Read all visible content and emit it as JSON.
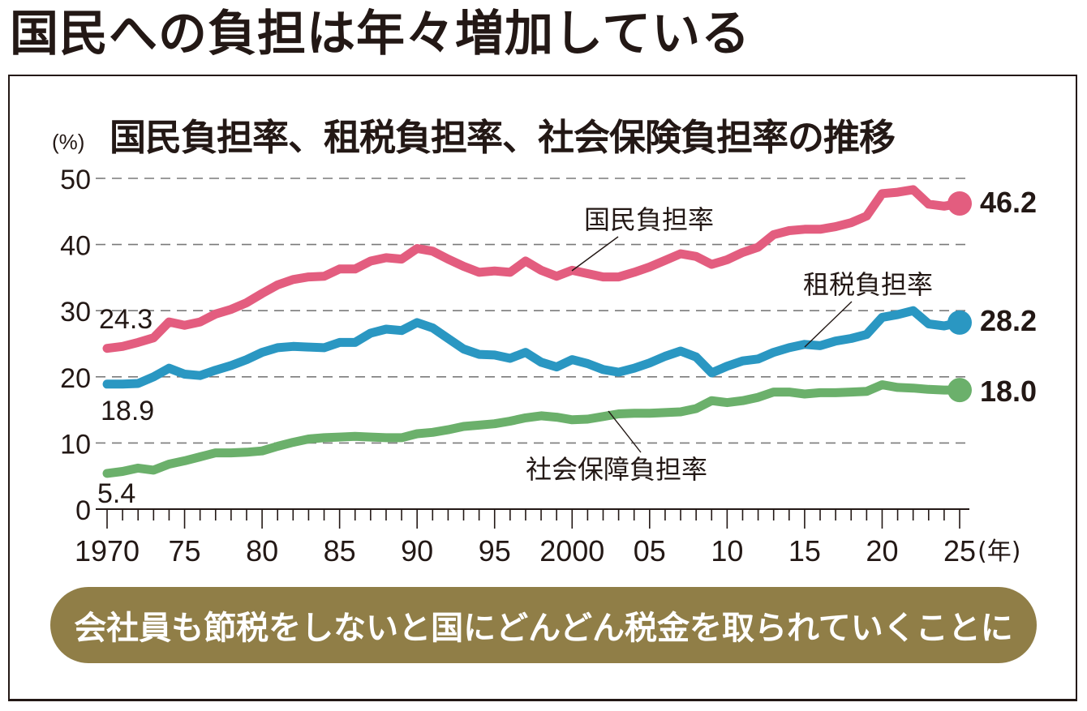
{
  "headline": "国民への負担は年々増加している",
  "banner_text": "会社員も節税をしないと国にどんどん税金を取られていくことに",
  "colors": {
    "national": "#e35d7f",
    "tax": "#2a97c2",
    "social": "#6bb06b",
    "banner": "#907e47",
    "text": "#231815",
    "grid": "#7a7a7a"
  },
  "chart_data": {
    "type": "line",
    "title": "国民負担率、租税負担率、社会保険負担率の推移",
    "ylabel": "(%)",
    "xlabel": "(年)",
    "ylim": [
      0,
      50
    ],
    "xlim": [
      1970,
      2025
    ],
    "yticks": [
      0,
      10,
      20,
      30,
      40,
      50
    ],
    "ytick_labels": [
      "0",
      "10",
      "20",
      "30",
      "40",
      "50"
    ],
    "xticks": [
      1970,
      1975,
      1980,
      1985,
      1990,
      1995,
      2000,
      2005,
      2010,
      2015,
      2020,
      2025
    ],
    "xtick_labels": [
      "1970",
      "75",
      "80",
      "85",
      "90",
      "95",
      "2000",
      "05",
      "10",
      "15",
      "20",
      "25"
    ],
    "x_unit_label": "(年)",
    "grid": "horizontal-dashed",
    "x": [
      1970,
      1971,
      1972,
      1973,
      1974,
      1975,
      1976,
      1977,
      1978,
      1979,
      1980,
      1981,
      1982,
      1983,
      1984,
      1985,
      1986,
      1987,
      1988,
      1989,
      1990,
      1991,
      1992,
      1993,
      1994,
      1995,
      1996,
      1997,
      1998,
      1999,
      2000,
      2001,
      2002,
      2003,
      2004,
      2005,
      2006,
      2007,
      2008,
      2009,
      2010,
      2011,
      2012,
      2013,
      2014,
      2015,
      2016,
      2017,
      2018,
      2019,
      2020,
      2021,
      2022,
      2023,
      2024,
      2025
    ],
    "series": [
      {
        "name": "国民負担率",
        "key": "national",
        "values": [
          24.3,
          24.6,
          25.2,
          25.9,
          28.3,
          27.8,
          28.3,
          29.5,
          30.2,
          31.2,
          32.6,
          33.9,
          34.7,
          35.1,
          35.2,
          36.3,
          36.3,
          37.5,
          38.0,
          37.8,
          39.4,
          39.0,
          37.8,
          36.7,
          35.8,
          36.0,
          35.8,
          37.5,
          36.1,
          35.2,
          36.1,
          35.6,
          35.1,
          35.1,
          35.8,
          36.6,
          37.6,
          38.6,
          38.2,
          37.0,
          37.7,
          38.8,
          39.6,
          41.5,
          42.1,
          42.3,
          42.3,
          42.7,
          43.3,
          44.3,
          47.7,
          47.9,
          48.3,
          46.1,
          45.8,
          46.2
        ],
        "start_label": "24.3",
        "end_label": "46.2",
        "annotation": "国民負担率"
      },
      {
        "name": "租税負担率",
        "key": "tax",
        "values": [
          18.9,
          18.9,
          19.0,
          20.0,
          21.3,
          20.4,
          20.2,
          21.0,
          21.7,
          22.6,
          23.7,
          24.4,
          24.6,
          24.5,
          24.4,
          25.2,
          25.2,
          26.6,
          27.2,
          27.0,
          28.2,
          27.4,
          25.8,
          24.2,
          23.4,
          23.3,
          22.8,
          23.7,
          22.2,
          21.5,
          22.6,
          22.0,
          21.1,
          20.7,
          21.3,
          22.1,
          23.1,
          23.9,
          23.0,
          20.6,
          21.6,
          22.4,
          22.7,
          23.7,
          24.4,
          24.9,
          24.7,
          25.4,
          25.8,
          26.4,
          29.0,
          29.4,
          30.0,
          28.0,
          27.7,
          28.2
        ],
        "start_label": "18.9",
        "end_label": "28.2",
        "annotation": "租税負担率"
      },
      {
        "name": "社会保障負担率",
        "key": "social",
        "values": [
          5.4,
          5.7,
          6.2,
          5.9,
          6.8,
          7.3,
          7.9,
          8.5,
          8.5,
          8.6,
          8.8,
          9.5,
          10.1,
          10.6,
          10.8,
          10.9,
          11.0,
          10.9,
          10.8,
          10.8,
          11.4,
          11.6,
          12.0,
          12.5,
          12.7,
          12.9,
          13.3,
          13.8,
          14.1,
          13.9,
          13.5,
          13.6,
          14.0,
          14.4,
          14.5,
          14.5,
          14.6,
          14.7,
          15.2,
          16.4,
          16.1,
          16.4,
          16.9,
          17.7,
          17.7,
          17.4,
          17.6,
          17.6,
          17.7,
          17.8,
          18.8,
          18.4,
          18.3,
          18.1,
          18.0,
          18.0
        ],
        "start_label": "5.4",
        "end_label": "18.0",
        "annotation": "社会保障負担率"
      }
    ]
  }
}
